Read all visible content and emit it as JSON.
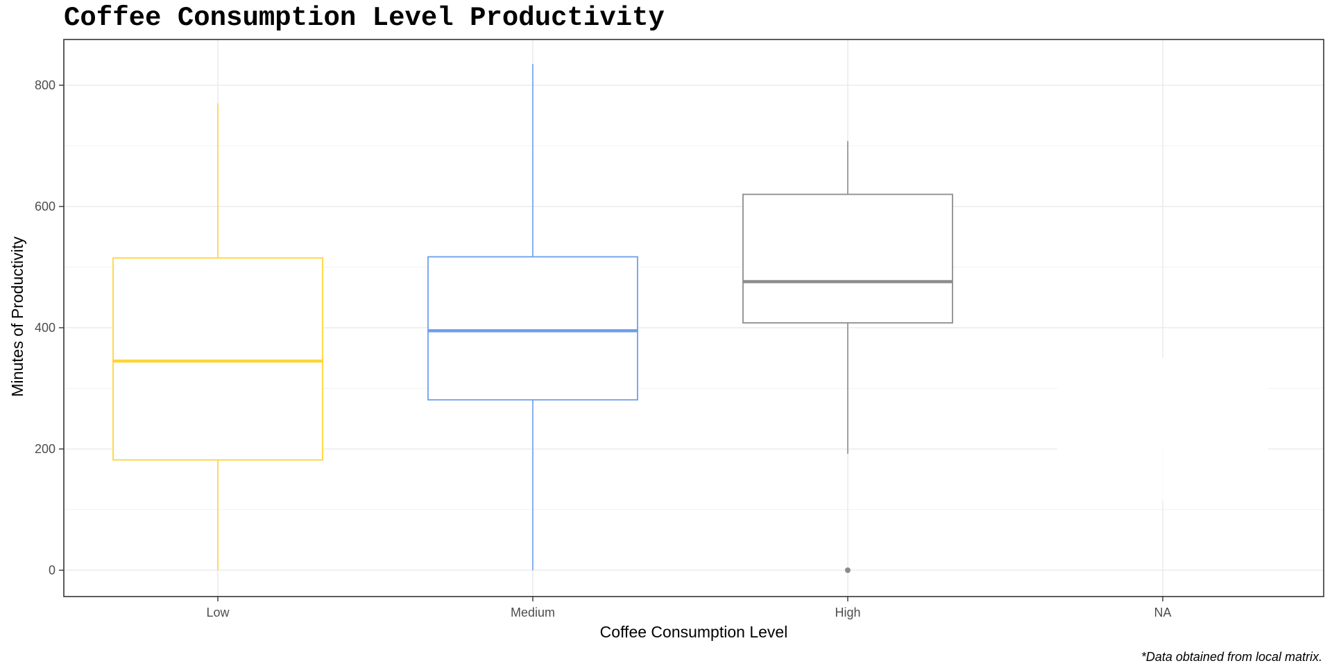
{
  "chart_data": {
    "type": "boxplot",
    "title": "Coffee Consumption Level Productivity",
    "xlabel": "Coffee Consumption Level",
    "ylabel": "Minutes of Productivity",
    "caption": "*Data obtained from local matrix.",
    "categories": [
      "Low",
      "Medium",
      "High",
      "NA"
    ],
    "ylim": [
      -40,
      875
    ],
    "yticks": [
      0,
      200,
      400,
      600,
      800
    ],
    "yticks_minor": [
      100,
      300,
      500,
      700
    ],
    "grid": true,
    "boxes": [
      {
        "category": "Low",
        "whisker_low": 0,
        "q1": 182,
        "median": 345,
        "q3": 515,
        "whisker_high": 770,
        "outliers": [],
        "color": "#FFD43B"
      },
      {
        "category": "Medium",
        "whisker_low": 0,
        "q1": 281,
        "median": 395,
        "q3": 517,
        "whisker_high": 835,
        "outliers": [],
        "color": "#6D9EEB"
      },
      {
        "category": "High",
        "whisker_low": 192,
        "q1": 408,
        "median": 476,
        "q3": 620,
        "whisker_high": 708,
        "outliers": [
          0
        ],
        "color": "#8C8C8C"
      },
      {
        "category": "NA",
        "whisker_low": 115,
        "q1": 200,
        "median": 280,
        "q3": 350,
        "whisker_high": 350,
        "outliers": [],
        "color": "#FFFFFF"
      }
    ]
  }
}
